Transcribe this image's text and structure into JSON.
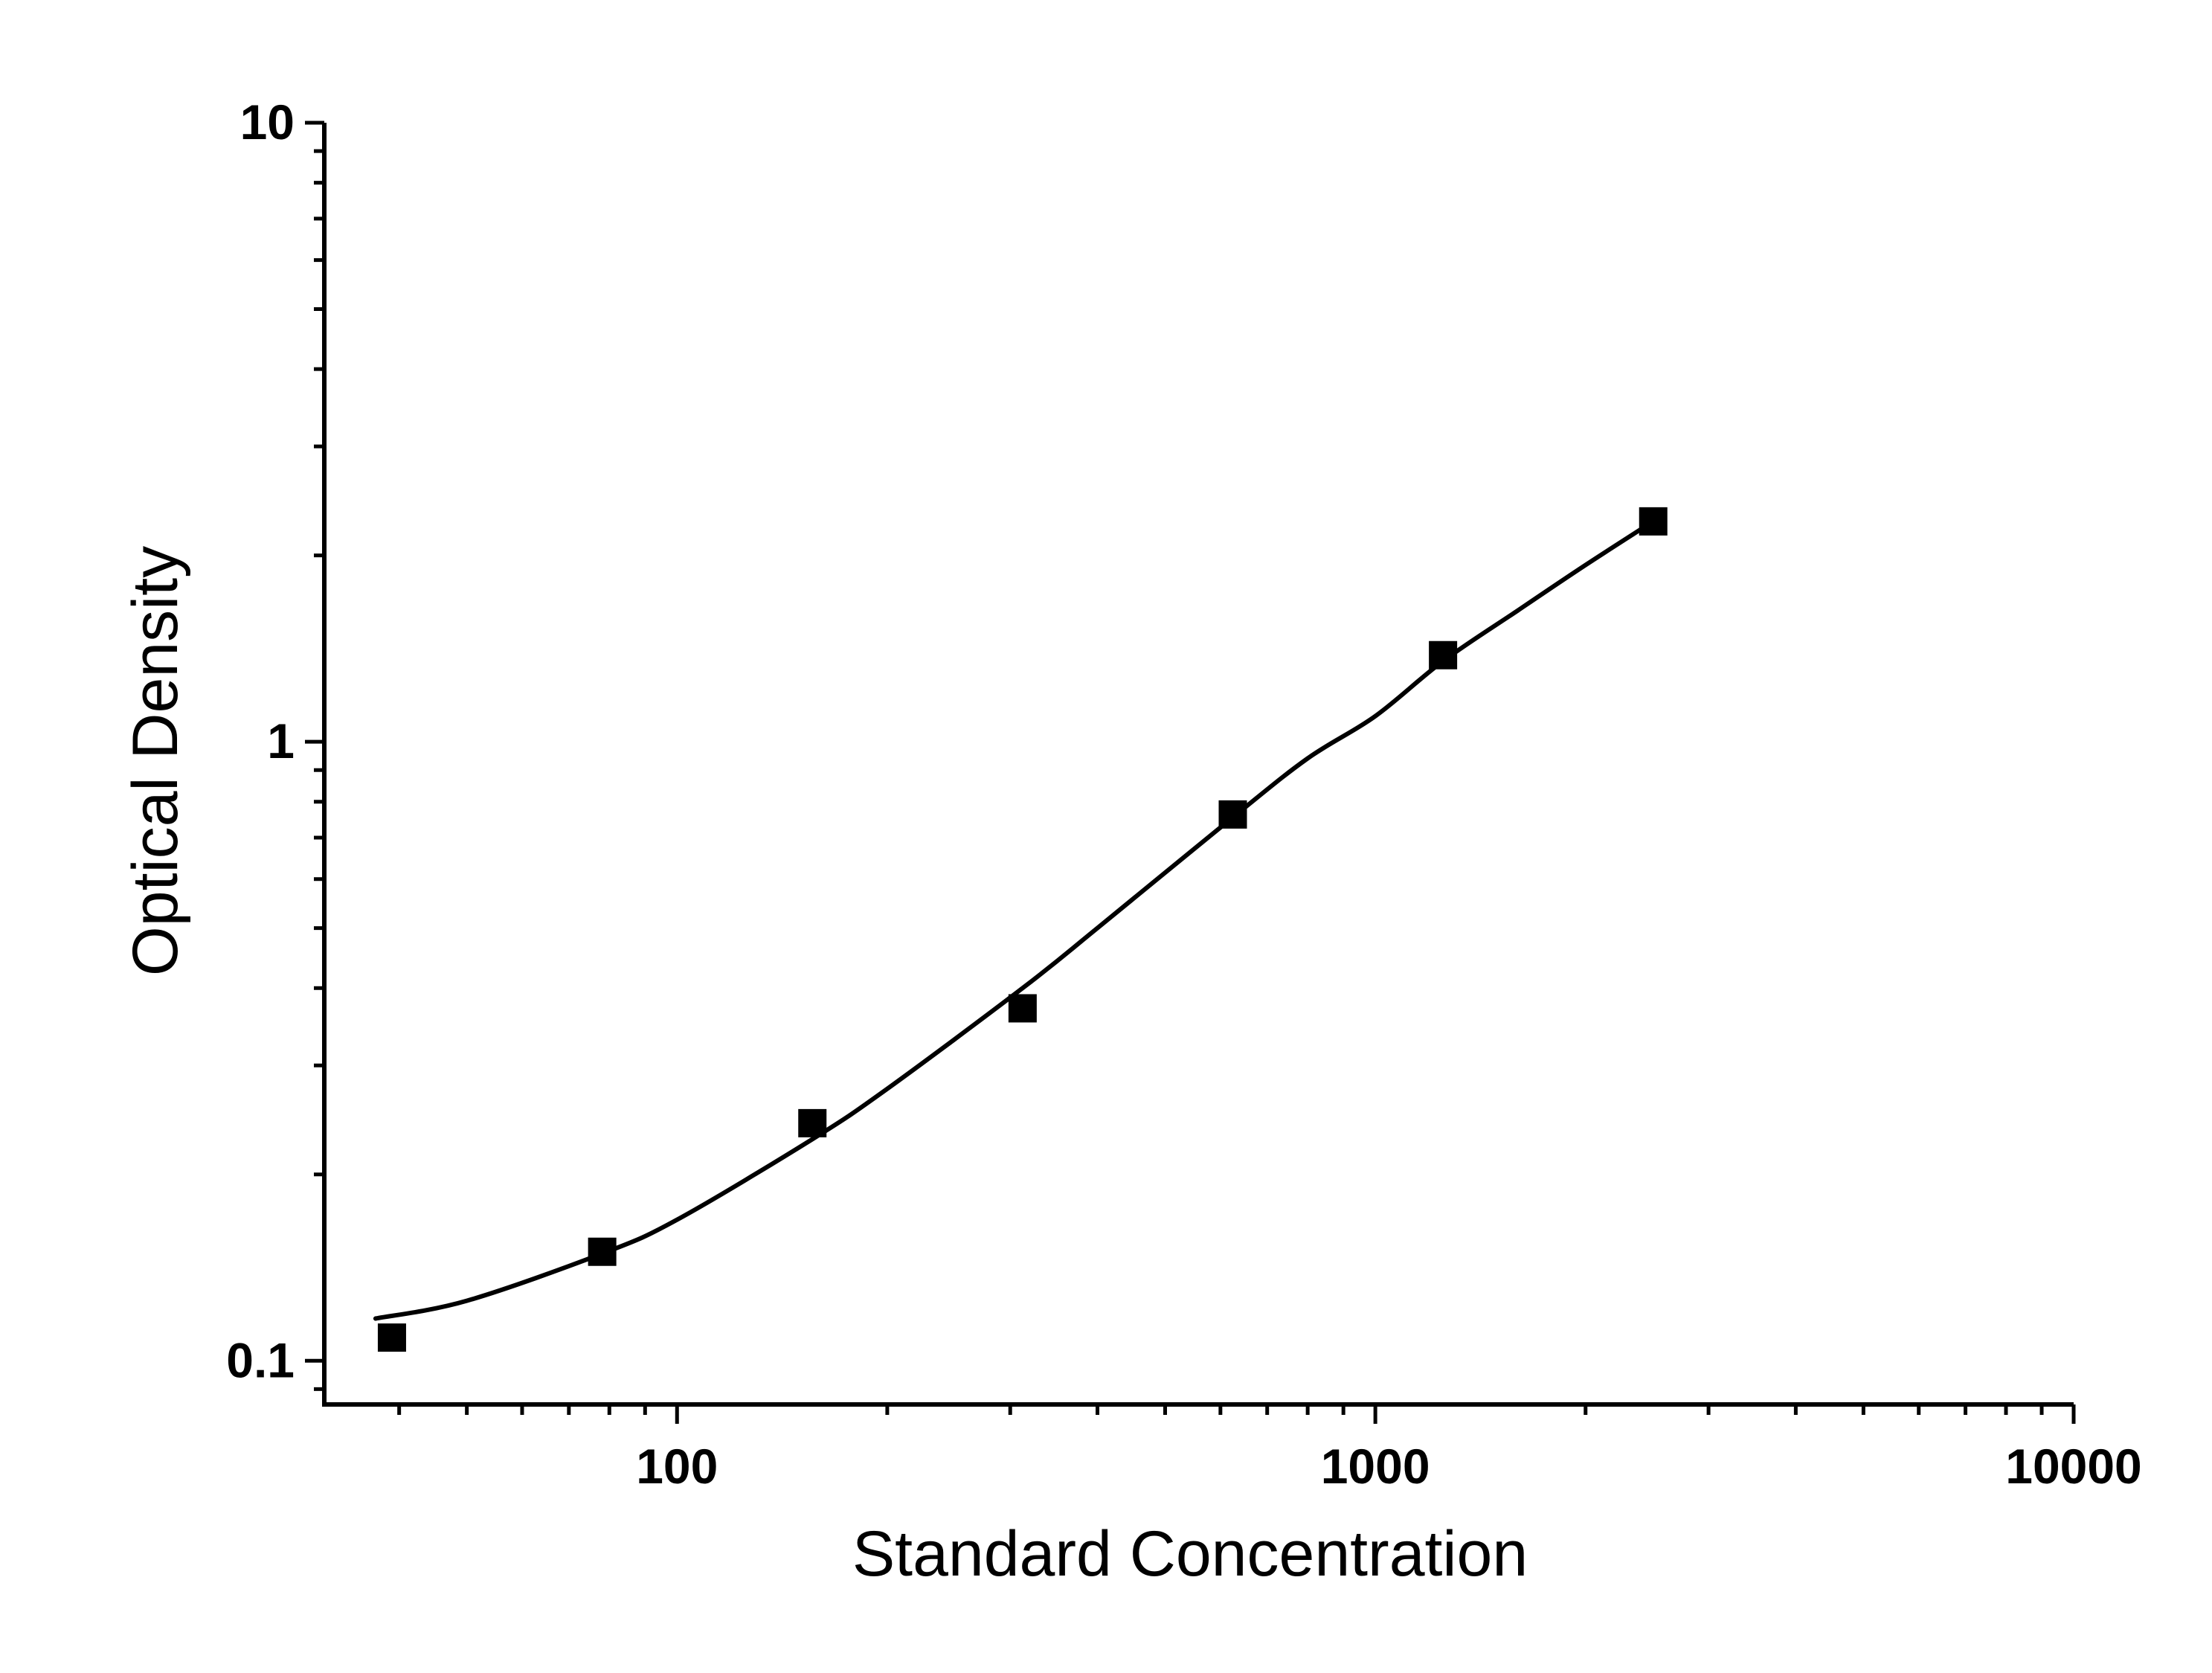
{
  "chart_data": {
    "type": "scatter",
    "title": "",
    "xlabel": "Standard Concentration",
    "ylabel": "Optical Density",
    "x_scale": "log",
    "y_scale": "log",
    "xlim": [
      31.25,
      10000
    ],
    "ylim": [
      0.085,
      10
    ],
    "x_ticks": [
      {
        "value": 100,
        "label": "100"
      },
      {
        "value": 1000,
        "label": "1000"
      },
      {
        "value": 10000,
        "label": "10000"
      }
    ],
    "y_ticks": [
      {
        "value": 0.1,
        "label": "0.1"
      },
      {
        "value": 1,
        "label": "1"
      },
      {
        "value": 10,
        "label": "10"
      }
    ],
    "grid": false,
    "legend": "none",
    "series": [
      {
        "marker": "square",
        "color": "#000000",
        "points": [
          {
            "x": 39.06,
            "y": 0.109
          },
          {
            "x": 78.13,
            "y": 0.15
          },
          {
            "x": 156.25,
            "y": 0.242
          },
          {
            "x": 312.5,
            "y": 0.371
          },
          {
            "x": 625,
            "y": 0.763
          },
          {
            "x": 1250,
            "y": 1.38
          },
          {
            "x": 2500,
            "y": 2.27
          }
        ]
      }
    ],
    "fit_curve": {
      "color": "#000000",
      "points": [
        {
          "x": 37,
          "y": 0.117
        },
        {
          "x": 50,
          "y": 0.125
        },
        {
          "x": 78.13,
          "y": 0.149
        },
        {
          "x": 100,
          "y": 0.169
        },
        {
          "x": 156.25,
          "y": 0.228
        },
        {
          "x": 200,
          "y": 0.275
        },
        {
          "x": 312.5,
          "y": 0.4
        },
        {
          "x": 400,
          "y": 0.5
        },
        {
          "x": 625,
          "y": 0.755
        },
        {
          "x": 800,
          "y": 0.94
        },
        {
          "x": 1000,
          "y": 1.1
        },
        {
          "x": 1250,
          "y": 1.35
        },
        {
          "x": 1600,
          "y": 1.63
        },
        {
          "x": 2000,
          "y": 1.93
        },
        {
          "x": 2500,
          "y": 2.27
        }
      ]
    }
  }
}
